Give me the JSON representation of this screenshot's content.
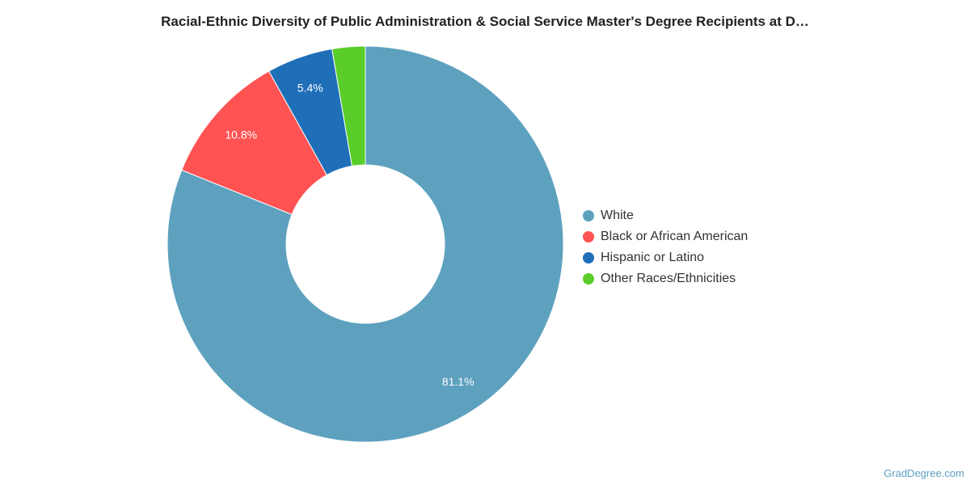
{
  "title": "Racial-Ethnic Diversity of Public Administration & Social Service Master's Degree Recipients at D…",
  "credit": "GradDegree.com",
  "chart_data": {
    "type": "pie",
    "donut": true,
    "title": "Racial-Ethnic Diversity of Public Administration & Social Service Master's Degree Recipients at D…",
    "legend_position": "right",
    "categories": [
      "White",
      "Black or African American",
      "Hispanic or Latino",
      "Other Races/Ethnicities"
    ],
    "values": [
      81.1,
      10.8,
      5.4,
      2.7
    ],
    "labels": [
      "81.1%",
      "10.8%",
      "5.4%",
      ""
    ],
    "colors": [
      "#5ea1bf",
      "#ff5252",
      "#1f6fb8",
      "#5acd2a"
    ]
  }
}
